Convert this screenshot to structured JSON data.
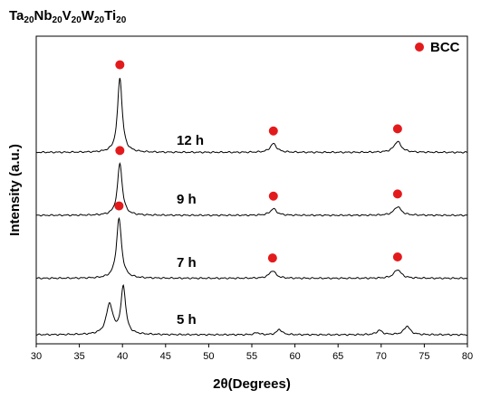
{
  "chart_data": {
    "type": "line",
    "title_parts": [
      {
        "text": "Ta",
        "sub": false
      },
      {
        "text": "20",
        "sub": true
      },
      {
        "text": "Nb",
        "sub": false
      },
      {
        "text": "20",
        "sub": true
      },
      {
        "text": "V",
        "sub": false
      },
      {
        "text": "20",
        "sub": true
      },
      {
        "text": "W",
        "sub": false
      },
      {
        "text": "20",
        "sub": true
      },
      {
        "text": "Ti",
        "sub": false
      },
      {
        "text": "20",
        "sub": true
      }
    ],
    "xlabel": "2θ(Degrees)",
    "ylabel": "Intensity (a.u.)",
    "xlim": [
      30,
      80
    ],
    "xticks": [
      30,
      35,
      40,
      45,
      50,
      55,
      60,
      65,
      70,
      75,
      80
    ],
    "legend": {
      "label": "BCC",
      "color": "#e31a1c",
      "position": "top-right"
    },
    "series": [
      {
        "name": "5 h",
        "baseline": 0.0,
        "peaks": [
          {
            "x": 38.5,
            "h": 0.28,
            "w": 0.45
          },
          {
            "x": 40.1,
            "h": 0.44,
            "w": 0.32
          },
          {
            "x": 55.6,
            "h": 0.02,
            "w": 0.3
          },
          {
            "x": 58.2,
            "h": 0.05,
            "w": 0.35
          },
          {
            "x": 69.8,
            "h": 0.04,
            "w": 0.4
          },
          {
            "x": 73.0,
            "h": 0.08,
            "w": 0.42
          }
        ],
        "bcc_markers": []
      },
      {
        "name": "7 h",
        "baseline": 0.52,
        "peaks": [
          {
            "x": 39.6,
            "h": 0.55,
            "w": 0.35
          },
          {
            "x": 57.4,
            "h": 0.07,
            "w": 0.45
          },
          {
            "x": 71.9,
            "h": 0.08,
            "w": 0.5
          }
        ],
        "bcc_markers": [
          39.6,
          57.4,
          71.9
        ]
      },
      {
        "name": "9 h",
        "baseline": 1.1,
        "peaks": [
          {
            "x": 39.7,
            "h": 0.48,
            "w": 0.33
          },
          {
            "x": 57.5,
            "h": 0.06,
            "w": 0.45
          },
          {
            "x": 71.9,
            "h": 0.08,
            "w": 0.5
          }
        ],
        "bcc_markers": [
          39.7,
          57.5,
          71.9
        ]
      },
      {
        "name": "12 h",
        "baseline": 1.68,
        "peaks": [
          {
            "x": 39.7,
            "h": 0.69,
            "w": 0.32
          },
          {
            "x": 57.5,
            "h": 0.08,
            "w": 0.45
          },
          {
            "x": 71.9,
            "h": 0.1,
            "w": 0.5
          }
        ],
        "bcc_markers": [
          39.7,
          57.5,
          71.9
        ]
      }
    ]
  }
}
